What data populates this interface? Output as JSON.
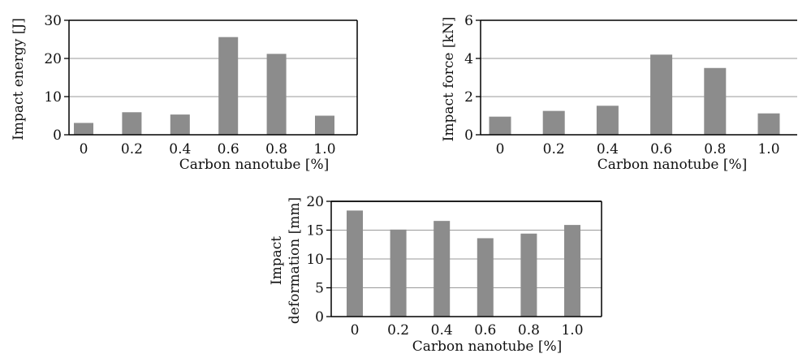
{
  "chart_data": [
    {
      "type": "bar",
      "ylabel": "Impact energy [J]",
      "xlabel": "Carbon nanotube [%]",
      "categories": [
        "0",
        "0.2",
        "0.4",
        "0.6",
        "0.8",
        "1.0"
      ],
      "values": [
        3.1,
        5.9,
        5.3,
        25.6,
        21.2,
        5.0
      ],
      "ylim": [
        0,
        30
      ],
      "yticks": [
        "0",
        "10",
        "20",
        "30"
      ],
      "grid": true,
      "bar_color": "#8c8c8c"
    },
    {
      "type": "bar",
      "ylabel": "Impact force [kN]",
      "xlabel": "Carbon nanotube [%]",
      "categories": [
        "0",
        "0.2",
        "0.4",
        "0.6",
        "0.8",
        "1.0"
      ],
      "values": [
        0.95,
        1.25,
        1.52,
        4.2,
        3.5,
        1.12
      ],
      "ylim": [
        0,
        6
      ],
      "yticks": [
        "0",
        "2",
        "4",
        "6"
      ],
      "grid": true,
      "bar_color": "#8c8c8c"
    },
    {
      "type": "bar",
      "ylabel": [
        "Impact",
        "deformation [mm]"
      ],
      "xlabel": "Carbon nanotube [%]",
      "categories": [
        "0",
        "0.2",
        "0.4",
        "0.6",
        "0.8",
        "1.0"
      ],
      "values": [
        18.4,
        15.1,
        16.6,
        13.6,
        14.4,
        15.9
      ],
      "ylim": [
        0,
        20
      ],
      "yticks": [
        "0",
        "5",
        "10",
        "15",
        "20"
      ],
      "grid": true,
      "bar_color": "#8c8c8c"
    }
  ]
}
